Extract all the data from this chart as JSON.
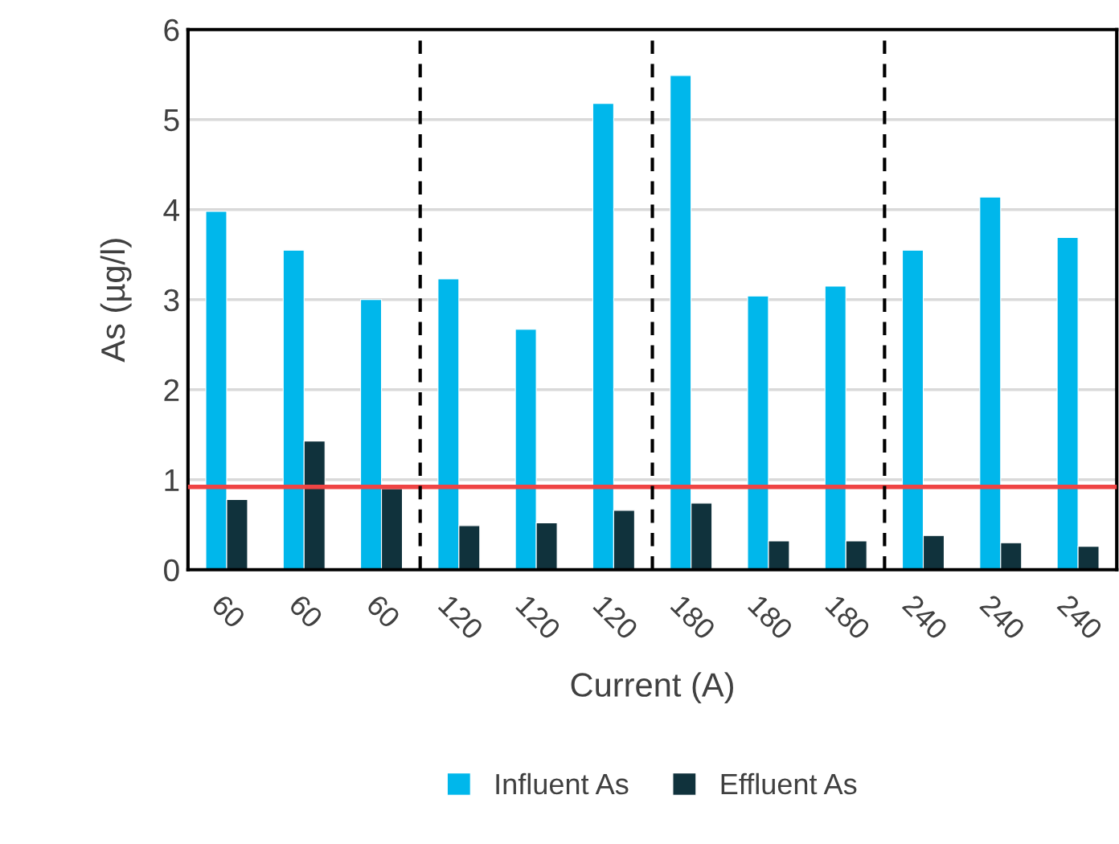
{
  "chart_data": {
    "type": "bar",
    "xlabel": "Current (A)",
    "ylabel": "As (µg/l)",
    "categories": [
      "60",
      "60",
      "60",
      "120",
      "120",
      "120",
      "180",
      "180",
      "180",
      "240",
      "240",
      "240"
    ],
    "series": [
      {
        "name": "Influent As",
        "color": "#00b7eb",
        "values": [
          3.98,
          3.55,
          3.0,
          3.23,
          2.67,
          5.18,
          5.49,
          3.04,
          3.15,
          3.55,
          4.14,
          3.69
        ]
      },
      {
        "name": "Effluent As",
        "color": "#10323c",
        "values": [
          0.78,
          1.43,
          0.9,
          0.49,
          0.52,
          0.66,
          0.74,
          0.32,
          0.32,
          0.38,
          0.3,
          0.26
        ]
      }
    ],
    "ylim": [
      0,
      6
    ],
    "yticks": [
      0,
      1,
      2,
      3,
      4,
      5,
      6
    ],
    "grid": "y",
    "legend": "bottom",
    "ref_lines": [
      {
        "axis": "y",
        "value": 0.92,
        "color": "#ef4444",
        "line_style": "solid"
      }
    ]
  }
}
